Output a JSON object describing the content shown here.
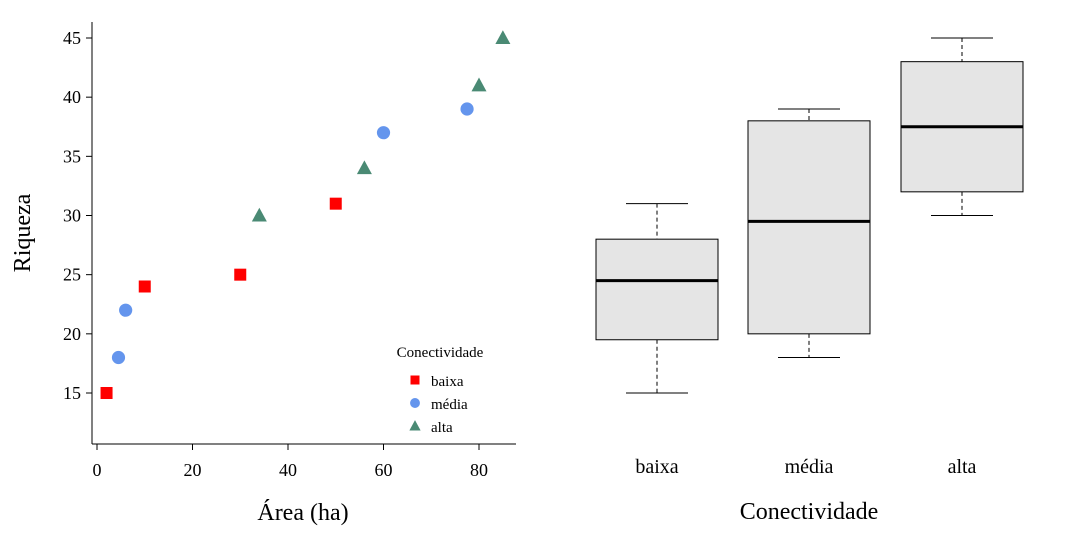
{
  "chart_data": [
    {
      "type": "scatter",
      "xlabel": "Área (ha)",
      "ylabel": "Riqueza",
      "xlim": [
        0,
        88
      ],
      "ylim": [
        11,
        46
      ],
      "xticks": [
        0,
        20,
        40,
        60,
        80
      ],
      "yticks": [
        15,
        20,
        25,
        30,
        35,
        40,
        45
      ],
      "grid": false,
      "legend": {
        "title": "Conectividade",
        "placement": "bottom-right"
      },
      "series": [
        {
          "name": "baixa",
          "color": "#FF0000",
          "marker": "square",
          "x": [
            2,
            10,
            30,
            50
          ],
          "y": [
            15,
            24,
            25,
            31
          ]
        },
        {
          "name": "média",
          "color": "#6495ED",
          "marker": "circle",
          "x": [
            4.5,
            6,
            60,
            77.5
          ],
          "y": [
            18,
            22,
            37,
            39
          ]
        },
        {
          "name": "alta",
          "color": "#4A8A74",
          "marker": "triangle",
          "x": [
            34,
            56,
            80,
            85
          ],
          "y": [
            30,
            34,
            41,
            45
          ]
        }
      ]
    },
    {
      "type": "boxplot",
      "xlabel": "Conectividade",
      "ylabel": "",
      "ylim": [
        11,
        46
      ],
      "categories": [
        "baixa",
        "média",
        "alta"
      ],
      "fill": "#E5E5E5",
      "boxes": [
        {
          "min": 15,
          "q1": 19.5,
          "median": 24.5,
          "q3": 28,
          "max": 31
        },
        {
          "min": 18,
          "q1": 20,
          "median": 29.5,
          "q3": 38,
          "max": 39
        },
        {
          "min": 30,
          "q1": 32,
          "median": 37.5,
          "q3": 43,
          "max": 45
        }
      ]
    }
  ]
}
